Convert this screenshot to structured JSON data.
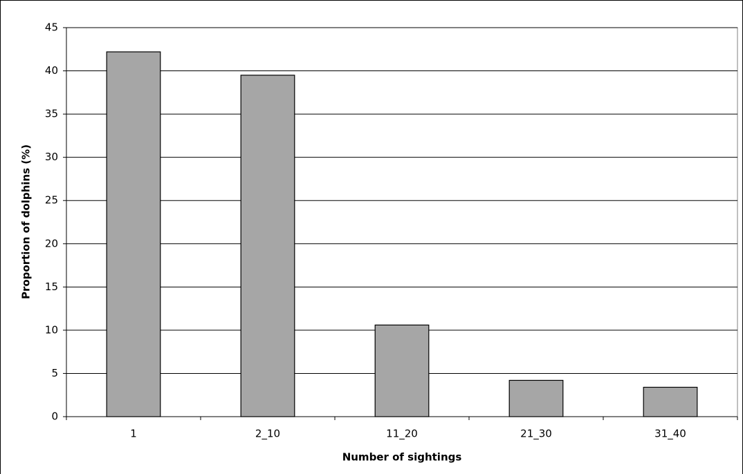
{
  "chart_data": {
    "type": "bar",
    "x_label": "Number of sightings",
    "y_label": "Proportion of dolphins (%)",
    "categories": [
      "1",
      "2_10",
      "11_20",
      "21_30",
      "31_40"
    ],
    "values": [
      42.2,
      39.5,
      10.6,
      4.2,
      3.4
    ],
    "color": "#a6a6a6",
    "ylim": [
      0,
      45
    ],
    "yticks": [
      0,
      5,
      10,
      15,
      20,
      25,
      30,
      35,
      40,
      45
    ],
    "grid": true
  }
}
